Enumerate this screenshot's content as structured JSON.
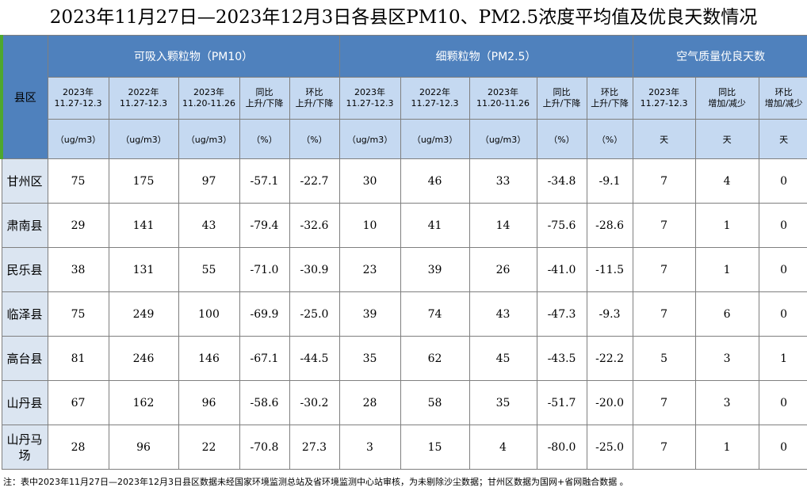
{
  "header": {
    "title": "2023年11月27日—2023年12月3日各县区PM10、PM2.5浓度平均值及优良天数情况"
  },
  "table": {
    "corner": "县区",
    "groups": [
      {
        "label": "可吸入颗粒物（PM10）",
        "span": 5
      },
      {
        "label": "细颗粒物（PM2.5）",
        "span": 5
      },
      {
        "label": "空气质量优良天数",
        "span": 3
      }
    ],
    "subheaders": [
      [
        "2023年",
        "11.27-12.3"
      ],
      [
        "2022年",
        "11.27-12.3"
      ],
      [
        "2023年",
        "11.20-11.26"
      ],
      [
        "同比",
        "上升/下降"
      ],
      [
        "环比",
        "上升/下降"
      ],
      [
        "2023年",
        "11.27-12.3"
      ],
      [
        "2022年",
        "11.27-12.3"
      ],
      [
        "2023年",
        "11.20-11.26"
      ],
      [
        "同比",
        "上升/下降"
      ],
      [
        "环比",
        "上升/下降"
      ],
      [
        "2023年",
        "11.27-12.3"
      ],
      [
        "同比",
        "增加/减少"
      ],
      [
        "环比",
        "增加/减少"
      ]
    ],
    "units": [
      "（ug/m3）",
      "（ug/m3）",
      "（ug/m3）",
      "（%）",
      "（%）",
      "（ug/m3）",
      "（ug/m3）",
      "（ug/m3）",
      "（%）",
      "（%）",
      "天",
      "天",
      "天"
    ],
    "rows": [
      [
        "甘州区",
        "75",
        "175",
        "97",
        "-57.1",
        "-22.7",
        "30",
        "46",
        "33",
        "-34.8",
        "-9.1",
        "7",
        "4",
        "0"
      ],
      [
        "肃南县",
        "29",
        "141",
        "43",
        "-79.4",
        "-32.6",
        "10",
        "41",
        "14",
        "-75.6",
        "-28.6",
        "7",
        "1",
        "0"
      ],
      [
        "民乐县",
        "38",
        "131",
        "55",
        "-71.0",
        "-30.9",
        "23",
        "39",
        "26",
        "-41.0",
        "-11.5",
        "7",
        "1",
        "0"
      ],
      [
        "临泽县",
        "75",
        "249",
        "100",
        "-69.9",
        "-25.0",
        "39",
        "74",
        "43",
        "-47.3",
        "-9.3",
        "7",
        "6",
        "0"
      ],
      [
        "高台县",
        "81",
        "246",
        "146",
        "-67.1",
        "-44.5",
        "35",
        "62",
        "45",
        "-43.5",
        "-22.2",
        "5",
        "3",
        "1"
      ],
      [
        "山丹县",
        "67",
        "162",
        "96",
        "-58.6",
        "-30.2",
        "28",
        "58",
        "35",
        "-51.7",
        "-20.0",
        "7",
        "3",
        "0"
      ],
      [
        "山丹马场",
        "28",
        "96",
        "22",
        "-70.8",
        "27.3",
        "3",
        "15",
        "4",
        "-80.0",
        "-25.0",
        "7",
        "1",
        "0"
      ]
    ]
  },
  "note": "注：表中2023年11月27日—2023年12月3日县区数据未经国家环境监测总站及省环境监测中心站审核，为未剔除沙尘数据；甘州区数据为国网+省网融合数据 。"
}
